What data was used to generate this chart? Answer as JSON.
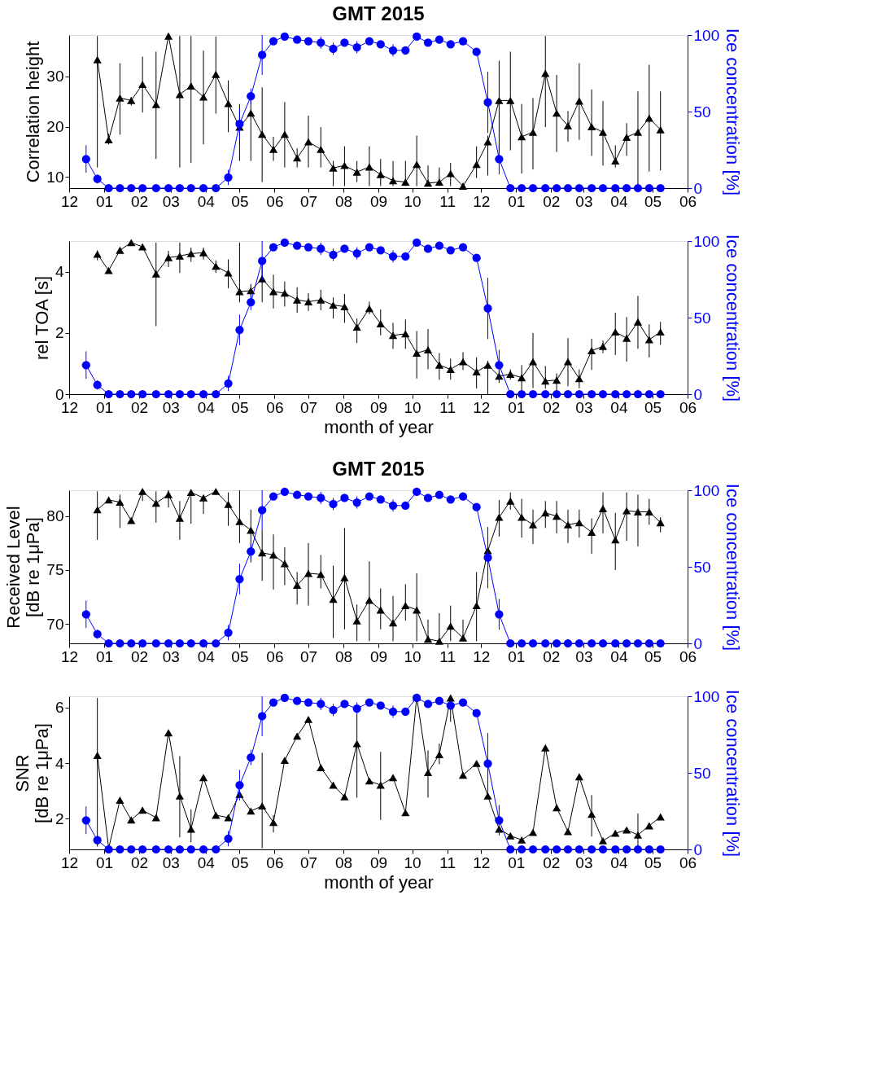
{
  "chart_data": [
    {
      "type": "line",
      "title": "GMT 2015",
      "ylabel": "Correlation height",
      "y2label": "Ice concentration [%]",
      "x": [
        "2014-12-16",
        "2014-12-26",
        "2015-01-05",
        "2015-01-15",
        "2015-01-25",
        "2015-02-04",
        "2015-02-16",
        "2015-02-27",
        "2015-03-09",
        "2015-03-19",
        "2015-03-30",
        "2015-04-10",
        "2015-04-21",
        "2015-05-01",
        "2015-05-11",
        "2015-05-21",
        "2015-05-31",
        "2015-06-10",
        "2015-06-21",
        "2015-07-01",
        "2015-07-12",
        "2015-07-23",
        "2015-08-02",
        "2015-08-13",
        "2015-08-24",
        "2015-09-03",
        "2015-09-14",
        "2015-09-25",
        "2015-10-05",
        "2015-10-15",
        "2015-10-25",
        "2015-11-04",
        "2015-11-15",
        "2015-11-27",
        "2015-12-07",
        "2015-12-17",
        "2015-12-27",
        "2016-01-06",
        "2016-01-16",
        "2016-01-27",
        "2016-02-06",
        "2016-02-16",
        "2016-02-26",
        "2016-03-08",
        "2016-03-18",
        "2016-03-29",
        "2016-04-08",
        "2016-04-18",
        "2016-04-28",
        "2016-05-08"
      ],
      "xlim": [
        "2014-12-01",
        "2016-06-01"
      ],
      "xticks": [
        {
          "value": "2014-12-01",
          "label": "12"
        },
        {
          "value": "2015-01-01",
          "label": "01"
        },
        {
          "value": "2015-02-01",
          "label": "02"
        },
        {
          "value": "2015-03-01",
          "label": "03"
        },
        {
          "value": "2015-04-01",
          "label": "04"
        },
        {
          "value": "2015-05-01",
          "label": "05"
        },
        {
          "value": "2015-06-01",
          "label": "06"
        },
        {
          "value": "2015-07-01",
          "label": "07"
        },
        {
          "value": "2015-08-01",
          "label": "08"
        },
        {
          "value": "2015-09-01",
          "label": "09"
        },
        {
          "value": "2015-10-01",
          "label": "10"
        },
        {
          "value": "2015-11-01",
          "label": "11"
        },
        {
          "value": "2015-12-01",
          "label": "12"
        },
        {
          "value": "2016-01-01",
          "label": "01"
        },
        {
          "value": "2016-02-01",
          "label": "02"
        },
        {
          "value": "2016-03-01",
          "label": "03"
        },
        {
          "value": "2016-04-01",
          "label": "04"
        },
        {
          "value": "2016-05-01",
          "label": "05"
        },
        {
          "value": "2016-06-01",
          "label": "06"
        }
      ],
      "ylim": [
        7.8,
        38.2
      ],
      "yticks": [
        10,
        20,
        30
      ],
      "y2lim": [
        0,
        100
      ],
      "y2ticks": [
        0,
        50,
        100
      ],
      "series": [
        {
          "color": "#000000",
          "marker": "triangle",
          "values": [
            null,
            33.3,
            17.4,
            25.7,
            25.2,
            28.4,
            24.4,
            38.0,
            26.4,
            28.1,
            25.9,
            30.4,
            24.6,
            19.9,
            22.7,
            18.5,
            15.5,
            18.5,
            13.8,
            17.0,
            15.5,
            11.8,
            12.3,
            11.0,
            12.0,
            10.5,
            9.3,
            9.0,
            12.5,
            8.8,
            9.0,
            10.7,
            8.2,
            12.5,
            17.0,
            25.2,
            25.2,
            18.0,
            18.9,
            30.6,
            22.7,
            20.2,
            25.1,
            20.0,
            18.9,
            13.2,
            17.9,
            18.9,
            21.7,
            19.4
          ],
          "errors": [
            null,
            [
              11.9,
              38.0
            ],
            [
              16.5,
              18.6
            ],
            [
              18.4,
              32.6
            ],
            [
              24.2,
              25.9
            ],
            [
              22.8,
              33.9
            ],
            [
              13.6,
              34.9
            ],
            null,
            [
              11.9,
              38.0
            ],
            [
              12.8,
              38.0
            ],
            [
              16.5,
              35.1
            ],
            [
              22.6,
              37.9
            ],
            [
              18.9,
              29.2
            ],
            [
              13.2,
              24.5
            ],
            [
              13.2,
              26.5
            ],
            [
              9.0,
              27.8
            ],
            [
              13.2,
              18.0
            ],
            [
              11.9,
              24.9
            ],
            [
              11.9,
              15.7
            ],
            [
              11.9,
              22.2
            ],
            [
              11.9,
              19.9
            ],
            [
              8.2,
              13.2
            ],
            [
              8.2,
              16.1
            ],
            [
              9.0,
              13.2
            ],
            [
              8.2,
              16.1
            ],
            [
              8.2,
              13.6
            ],
            [
              8.2,
              13.2
            ],
            [
              8.2,
              13.2
            ],
            [
              8.2,
              18.2
            ],
            [
              8.2,
              12.3
            ],
            [
              8.2,
              11.9
            ],
            [
              8.2,
              12.8
            ],
            null,
            [
              9.8,
              16.1
            ],
            [
              10.3,
              18.2
            ],
            [
              14.9,
              33.1
            ],
            [
              15.3,
              34.9
            ],
            [
              10.7,
              24.5
            ],
            [
              11.5,
              25.7
            ],
            [
              19.9,
              38.0
            ],
            [
              15.0,
              30.3
            ],
            [
              17.0,
              23.1
            ],
            [
              17.4,
              32.6
            ],
            [
              14.2,
              27.4
            ],
            [
              12.3,
              25.1
            ],
            [
              11.9,
              16.3
            ],
            [
              14.2,
              20.7
            ],
            [
              8.6,
              27.0
            ],
            [
              11.1,
              32.3
            ],
            [
              11.3,
              27.0
            ]
          ]
        },
        {
          "color": "#0000ff",
          "marker": "circle",
          "axis": "y2",
          "values": [
            19,
            6,
            0,
            0,
            0,
            0,
            0,
            0,
            0,
            0,
            0,
            0,
            7,
            42,
            60,
            87,
            96,
            99,
            97,
            96,
            95,
            91,
            95,
            92,
            96,
            94,
            90,
            90,
            99,
            95,
            97,
            94,
            96,
            89,
            56,
            19,
            0,
            0,
            0,
            0,
            0,
            0,
            0,
            0,
            0,
            0,
            0,
            0,
            0,
            0
          ],
          "errors": [
            9,
            3,
            null,
            null,
            null,
            null,
            null,
            null,
            null,
            null,
            null,
            null,
            5,
            10,
            5,
            13,
            null,
            null,
            null,
            null,
            4,
            4,
            null,
            4,
            null,
            null,
            4,
            null,
            null,
            null,
            null,
            null,
            null,
            null,
            20,
            10,
            null,
            null,
            null,
            null,
            null,
            null,
            null,
            null,
            null,
            null,
            null,
            null,
            null,
            null
          ]
        }
      ]
    },
    {
      "type": "line",
      "xlabel": "month of year",
      "ylabel": "rel TOA [s]",
      "y2label": "Ice concentration [%]",
      "x": [
        "2014-12-16",
        "2014-12-26",
        "2015-01-05",
        "2015-01-15",
        "2015-01-25",
        "2015-02-04",
        "2015-02-16",
        "2015-02-27",
        "2015-03-09",
        "2015-03-19",
        "2015-03-30",
        "2015-04-10",
        "2015-04-21",
        "2015-05-01",
        "2015-05-11",
        "2015-05-21",
        "2015-05-31",
        "2015-06-10",
        "2015-06-21",
        "2015-07-01",
        "2015-07-12",
        "2015-07-23",
        "2015-08-02",
        "2015-08-13",
        "2015-08-24",
        "2015-09-03",
        "2015-09-14",
        "2015-09-25",
        "2015-10-05",
        "2015-10-15",
        "2015-10-25",
        "2015-11-04",
        "2015-11-15",
        "2015-11-27",
        "2015-12-07",
        "2015-12-17",
        "2015-12-27",
        "2016-01-06",
        "2016-01-16",
        "2016-01-27",
        "2016-02-06",
        "2016-02-16",
        "2016-02-26",
        "2016-03-08",
        "2016-03-18",
        "2016-03-29",
        "2016-04-08",
        "2016-04-18",
        "2016-04-28",
        "2016-05-08"
      ],
      "xlim": [
        "2014-12-01",
        "2016-06-01"
      ],
      "xticks": [
        {
          "value": "2014-12-01",
          "label": "12"
        },
        {
          "value": "2015-01-01",
          "label": "01"
        },
        {
          "value": "2015-02-01",
          "label": "02"
        },
        {
          "value": "2015-03-01",
          "label": "03"
        },
        {
          "value": "2015-04-01",
          "label": "04"
        },
        {
          "value": "2015-05-01",
          "label": "05"
        },
        {
          "value": "2015-06-01",
          "label": "06"
        },
        {
          "value": "2015-07-01",
          "label": "07"
        },
        {
          "value": "2015-08-01",
          "label": "08"
        },
        {
          "value": "2015-09-01",
          "label": "09"
        },
        {
          "value": "2015-10-01",
          "label": "10"
        },
        {
          "value": "2015-11-01",
          "label": "11"
        },
        {
          "value": "2015-12-01",
          "label": "12"
        },
        {
          "value": "2016-01-01",
          "label": "01"
        },
        {
          "value": "2016-02-01",
          "label": "02"
        },
        {
          "value": "2016-03-01",
          "label": "03"
        },
        {
          "value": "2016-04-01",
          "label": "04"
        },
        {
          "value": "2016-05-01",
          "label": "05"
        },
        {
          "value": "2016-06-01",
          "label": "06"
        }
      ],
      "ylim": [
        0,
        5
      ],
      "yticks": [
        0,
        2,
        4
      ],
      "y2lim": [
        0,
        100
      ],
      "y2ticks": [
        0,
        50,
        100
      ],
      "series": [
        {
          "color": "#000000",
          "marker": "triangle",
          "values": [
            null,
            4.57,
            4.04,
            4.7,
            4.95,
            4.81,
            3.93,
            4.46,
            4.51,
            4.59,
            4.62,
            4.18,
            3.96,
            3.35,
            3.38,
            3.77,
            3.35,
            3.3,
            3.08,
            3.02,
            3.08,
            2.91,
            2.86,
            2.19,
            2.8,
            2.3,
            1.92,
            1.97,
            1.34,
            1.45,
            0.95,
            0.81,
            1.06,
            0.73,
            0.95,
            0.59,
            0.65,
            0.54,
            1.06,
            0.43,
            0.46,
            1.06,
            0.51,
            1.42,
            1.56,
            2.03,
            1.83,
            2.36,
            1.78,
            2.03
          ],
          "errors": [
            null,
            [
              4.37,
              4.7
            ],
            [
              3.95,
              4.12
            ],
            [
              4.62,
              4.78
            ],
            [
              4.88,
              5.0
            ],
            [
              4.72,
              4.9
            ],
            [
              2.22,
              4.95
            ],
            [
              4.15,
              4.68
            ],
            [
              3.96,
              4.95
            ],
            [
              4.32,
              4.79
            ],
            [
              4.4,
              4.79
            ],
            [
              3.96,
              4.37
            ],
            [
              3.46,
              4.4
            ],
            [
              3.0,
              4.95
            ],
            [
              3.16,
              3.6
            ],
            [
              3.0,
              4.37
            ],
            [
              2.8,
              3.9
            ],
            [
              2.86,
              3.68
            ],
            [
              2.66,
              3.49
            ],
            [
              2.72,
              3.3
            ],
            [
              2.74,
              3.41
            ],
            [
              2.47,
              3.16
            ],
            [
              2.33,
              3.27
            ],
            [
              1.67,
              2.47
            ],
            [
              2.61,
              3.02
            ],
            [
              1.92,
              2.77
            ],
            [
              1.48,
              2.33
            ],
            [
              1.48,
              2.44
            ],
            [
              0.51,
              2.06
            ],
            [
              0.81,
              2.13
            ],
            [
              0.47,
              1.34
            ],
            [
              0.47,
              1.16
            ],
            [
              0.79,
              1.37
            ],
            [
              0.19,
              1.2
            ],
            [
              0,
              1.09
            ],
            [
              0.37,
              0.79
            ],
            [
              0.47,
              0.81
            ],
            [
              0.12,
              0.95
            ],
            [
              0.2,
              2.0
            ],
            [
              0.18,
              0.92
            ],
            [
              0.12,
              0.68
            ],
            [
              0.26,
              1.83
            ],
            [
              0.19,
              0.81
            ],
            [
              0.79,
              1.81
            ],
            [
              1.34,
              1.75
            ],
            [
              1.28,
              2.66
            ],
            [
              1.06,
              2.52
            ],
            [
              1.48,
              3.21
            ],
            [
              1.2,
              2.28
            ],
            [
              1.61,
              2.36
            ]
          ]
        },
        {
          "color": "#0000ff",
          "marker": "circle",
          "axis": "y2",
          "values": [
            19,
            6,
            0,
            0,
            0,
            0,
            0,
            0,
            0,
            0,
            0,
            0,
            7,
            42,
            60,
            87,
            96,
            99,
            97,
            96,
            95,
            91,
            95,
            92,
            96,
            94,
            90,
            90,
            99,
            95,
            97,
            94,
            96,
            89,
            56,
            19,
            0,
            0,
            0,
            0,
            0,
            0,
            0,
            0,
            0,
            0,
            0,
            0,
            0,
            0
          ],
          "errors": [
            9,
            3,
            null,
            null,
            null,
            null,
            null,
            null,
            null,
            null,
            null,
            null,
            5,
            10,
            5,
            13,
            null,
            null,
            null,
            null,
            4,
            4,
            null,
            4,
            null,
            null,
            4,
            null,
            null,
            null,
            null,
            null,
            null,
            null,
            20,
            10,
            null,
            null,
            null,
            null,
            null,
            null,
            null,
            null,
            null,
            null,
            null,
            null,
            null,
            null
          ]
        }
      ]
    },
    {
      "type": "line",
      "title": "GMT 2015",
      "ylabel": "Received Level\n[dB re 1μPa]",
      "y2label": "Ice concentration [%]",
      "x": [
        "2014-12-16",
        "2014-12-26",
        "2015-01-05",
        "2015-01-15",
        "2015-01-25",
        "2015-02-04",
        "2015-02-16",
        "2015-02-27",
        "2015-03-09",
        "2015-03-19",
        "2015-03-30",
        "2015-04-10",
        "2015-04-21",
        "2015-05-01",
        "2015-05-11",
        "2015-05-21",
        "2015-05-31",
        "2015-06-10",
        "2015-06-21",
        "2015-07-01",
        "2015-07-12",
        "2015-07-23",
        "2015-08-02",
        "2015-08-13",
        "2015-08-24",
        "2015-09-03",
        "2015-09-14",
        "2015-09-25",
        "2015-10-05",
        "2015-10-15",
        "2015-10-25",
        "2015-11-04",
        "2015-11-15",
        "2015-11-27",
        "2015-12-07",
        "2015-12-17",
        "2015-12-27",
        "2016-01-06",
        "2016-01-16",
        "2016-01-27",
        "2016-02-06",
        "2016-02-16",
        "2016-02-26",
        "2016-03-08",
        "2016-03-18",
        "2016-03-29",
        "2016-04-08",
        "2016-04-18",
        "2016-04-28",
        "2016-05-08"
      ],
      "xlim": [
        "2014-12-01",
        "2016-06-01"
      ],
      "xticks": [
        {
          "value": "2014-12-01",
          "label": "12"
        },
        {
          "value": "2015-01-01",
          "label": "01"
        },
        {
          "value": "2015-02-01",
          "label": "02"
        },
        {
          "value": "2015-03-01",
          "label": "03"
        },
        {
          "value": "2015-04-01",
          "label": "04"
        },
        {
          "value": "2015-05-01",
          "label": "05"
        },
        {
          "value": "2015-06-01",
          "label": "06"
        },
        {
          "value": "2015-07-01",
          "label": "07"
        },
        {
          "value": "2015-08-01",
          "label": "08"
        },
        {
          "value": "2015-09-01",
          "label": "09"
        },
        {
          "value": "2015-10-01",
          "label": "10"
        },
        {
          "value": "2015-11-01",
          "label": "11"
        },
        {
          "value": "2015-12-01",
          "label": "12"
        },
        {
          "value": "2016-01-01",
          "label": "01"
        },
        {
          "value": "2016-02-01",
          "label": "02"
        },
        {
          "value": "2016-03-01",
          "label": "03"
        },
        {
          "value": "2016-04-01",
          "label": "04"
        },
        {
          "value": "2016-05-01",
          "label": "05"
        },
        {
          "value": "2016-06-01",
          "label": "06"
        }
      ],
      "ylim": [
        68.2,
        82.4
      ],
      "yticks": [
        70,
        75,
        80
      ],
      "y2lim": [
        0,
        100
      ],
      "y2ticks": [
        0,
        50,
        100
      ],
      "series": [
        {
          "color": "#000000",
          "marker": "triangle",
          "values": [
            null,
            80.6,
            81.5,
            81.3,
            79.6,
            82.3,
            81.2,
            82.0,
            79.8,
            82.2,
            81.7,
            82.3,
            81.1,
            79.5,
            78.7,
            76.6,
            76.4,
            75.6,
            73.6,
            74.7,
            74.6,
            72.3,
            74.3,
            70.3,
            72.2,
            71.3,
            70.1,
            71.7,
            71.3,
            68.6,
            68.4,
            69.8,
            68.7,
            71.7,
            76.8,
            79.9,
            81.4,
            79.9,
            79.2,
            80.3,
            80.0,
            79.2,
            79.4,
            78.5,
            80.7,
            77.8,
            80.5,
            80.4,
            80.4,
            79.4
          ],
          "errors": [
            null,
            [
              77.8,
              82.3
            ],
            [
              81.2,
              81.8
            ],
            [
              78.9,
              82.0
            ],
            null,
            [
              81.4,
              82.4
            ],
            [
              79.4,
              82.3
            ],
            [
              80.8,
              82.4
            ],
            [
              77.8,
              81.4
            ],
            [
              79.3,
              82.4
            ],
            [
              80.2,
              81.8
            ],
            [
              82.0,
              82.4
            ],
            [
              79.1,
              82.2
            ],
            [
              77.5,
              82.4
            ],
            [
              75.7,
              80.6
            ],
            [
              74.0,
              78.7
            ],
            [
              73.2,
              78.3
            ],
            [
              73.6,
              77.1
            ],
            [
              71.8,
              74.8
            ],
            [
              71.7,
              77.5
            ],
            [
              73.3,
              76.4
            ],
            [
              68.7,
              75.4
            ],
            [
              69.5,
              78.9
            ],
            [
              68.4,
              71.8
            ],
            [
              68.4,
              75.8
            ],
            [
              69.5,
              73.3
            ],
            [
              68.4,
              72.6
            ],
            [
              70.3,
              73.7
            ],
            [
              68.4,
              74.7
            ],
            [
              68.4,
              70.4
            ],
            [
              68.4,
              71.0
            ],
            [
              68.4,
              71.7
            ],
            [
              68.4,
              70.4
            ],
            [
              68.4,
              74.8
            ],
            null,
            [
              78.1,
              81.5
            ],
            [
              80.6,
              82.2
            ],
            [
              78.0,
              81.6
            ],
            [
              77.4,
              80.6
            ],
            [
              78.9,
              81.4
            ],
            [
              78.4,
              81.4
            ],
            [
              77.5,
              80.6
            ],
            [
              78.0,
              80.6
            ],
            [
              76.5,
              79.8
            ],
            [
              78.4,
              82.2
            ],
            [
              75.0,
              80.3
            ],
            [
              77.7,
              82.2
            ],
            [
              77.2,
              82.0
            ],
            [
              79.2,
              81.6
            ],
            [
              78.5,
              79.9
            ]
          ]
        },
        {
          "color": "#0000ff",
          "marker": "circle",
          "axis": "y2",
          "values": [
            19,
            6,
            0,
            0,
            0,
            0,
            0,
            0,
            0,
            0,
            0,
            0,
            7,
            42,
            60,
            87,
            96,
            99,
            97,
            96,
            95,
            91,
            95,
            92,
            96,
            94,
            90,
            90,
            99,
            95,
            97,
            94,
            96,
            89,
            56,
            19,
            0,
            0,
            0,
            0,
            0,
            0,
            0,
            0,
            0,
            0,
            0,
            0,
            0,
            0
          ],
          "errors": [
            9,
            3,
            null,
            null,
            null,
            null,
            null,
            null,
            null,
            null,
            null,
            null,
            5,
            10,
            5,
            13,
            null,
            null,
            null,
            null,
            4,
            4,
            null,
            4,
            null,
            null,
            4,
            null,
            null,
            null,
            null,
            null,
            null,
            null,
            20,
            10,
            null,
            null,
            null,
            null,
            null,
            null,
            null,
            null,
            null,
            null,
            null,
            null,
            null,
            null
          ]
        }
      ]
    },
    {
      "type": "line",
      "xlabel": "month of year",
      "ylabel": "SNR\n[dB re 1μPa]",
      "y2label": "Ice concentration [%]",
      "x": [
        "2014-12-16",
        "2014-12-26",
        "2015-01-05",
        "2015-01-15",
        "2015-01-25",
        "2015-02-04",
        "2015-02-16",
        "2015-02-27",
        "2015-03-09",
        "2015-03-19",
        "2015-03-30",
        "2015-04-10",
        "2015-04-21",
        "2015-05-01",
        "2015-05-11",
        "2015-05-21",
        "2015-05-31",
        "2015-06-10",
        "2015-06-21",
        "2015-07-01",
        "2015-07-12",
        "2015-07-23",
        "2015-08-02",
        "2015-08-13",
        "2015-08-24",
        "2015-09-03",
        "2015-09-14",
        "2015-09-25",
        "2015-10-05",
        "2015-10-15",
        "2015-10-25",
        "2015-11-04",
        "2015-11-15",
        "2015-11-27",
        "2015-12-07",
        "2015-12-17",
        "2015-12-27",
        "2016-01-06",
        "2016-01-16",
        "2016-01-27",
        "2016-02-06",
        "2016-02-16",
        "2016-02-26",
        "2016-03-08",
        "2016-03-18",
        "2016-03-29",
        "2016-04-08",
        "2016-04-18",
        "2016-04-28",
        "2016-05-08"
      ],
      "xlim": [
        "2014-12-01",
        "2016-06-01"
      ],
      "xticks": [
        {
          "value": "2014-12-01",
          "label": "12"
        },
        {
          "value": "2015-01-01",
          "label": "01"
        },
        {
          "value": "2015-02-01",
          "label": "02"
        },
        {
          "value": "2015-03-01",
          "label": "03"
        },
        {
          "value": "2015-04-01",
          "label": "04"
        },
        {
          "value": "2015-05-01",
          "label": "05"
        },
        {
          "value": "2015-06-01",
          "label": "06"
        },
        {
          "value": "2015-07-01",
          "label": "07"
        },
        {
          "value": "2015-08-01",
          "label": "08"
        },
        {
          "value": "2015-09-01",
          "label": "09"
        },
        {
          "value": "2015-10-01",
          "label": "10"
        },
        {
          "value": "2015-11-01",
          "label": "11"
        },
        {
          "value": "2015-12-01",
          "label": "12"
        },
        {
          "value": "2016-01-01",
          "label": "01"
        },
        {
          "value": "2016-02-01",
          "label": "02"
        },
        {
          "value": "2016-03-01",
          "label": "03"
        },
        {
          "value": "2016-04-01",
          "label": "04"
        },
        {
          "value": "2016-05-01",
          "label": "05"
        },
        {
          "value": "2016-06-01",
          "label": "06"
        }
      ],
      "ylim": [
        0.9,
        6.4
      ],
      "yticks": [
        2,
        4,
        6
      ],
      "y2lim": [
        0,
        100
      ],
      "y2ticks": [
        0,
        50,
        100
      ],
      "series": [
        {
          "color": "#000000",
          "marker": "triangle",
          "values": [
            null,
            4.28,
            0.94,
            2.67,
            1.96,
            2.31,
            2.04,
            5.09,
            2.82,
            1.63,
            3.48,
            2.13,
            2.04,
            2.88,
            2.28,
            2.46,
            1.87,
            4.1,
            4.97,
            5.57,
            3.84,
            3.21,
            2.79,
            4.7,
            3.36,
            3.21,
            3.48,
            2.22,
            6.37,
            3.66,
            4.31,
            6.34,
            3.57,
            3.99,
            2.82,
            1.63,
            1.39,
            1.24,
            1.51,
            4.55,
            2.4,
            1.54,
            3.51,
            2.16,
            1.21,
            1.48,
            1.6,
            1.42,
            1.75,
            2.07
          ],
          "errors": [
            null,
            [
              1.0,
              6.34
            ],
            null,
            null,
            null,
            null,
            null,
            null,
            [
              1.33,
              4.25
            ],
            [
              1.15,
              2.34
            ],
            null,
            null,
            null,
            null,
            null,
            [
              0.94,
              4.37
            ],
            [
              1.51,
              2.13
            ],
            null,
            null,
            null,
            null,
            null,
            null,
            [
              2.76,
              5.75
            ],
            null,
            [
              1.96,
              4.4
            ],
            null,
            null,
            null,
            [
              2.76,
              4.46
            ],
            [
              3.96,
              4.7
            ],
            [
              5.48,
              6.22
            ],
            null,
            null,
            null,
            null,
            null,
            null,
            null,
            null,
            null,
            null,
            null,
            [
              1.36,
              2.85
            ],
            null,
            null,
            null,
            [
              0.94,
              2.19
            ],
            null,
            null
          ]
        },
        {
          "color": "#0000ff",
          "marker": "circle",
          "axis": "y2",
          "values": [
            19,
            6,
            0,
            0,
            0,
            0,
            0,
            0,
            0,
            0,
            0,
            0,
            7,
            42,
            60,
            87,
            96,
            99,
            97,
            96,
            95,
            91,
            95,
            92,
            96,
            94,
            90,
            90,
            99,
            95,
            97,
            94,
            96,
            89,
            56,
            19,
            0,
            0,
            0,
            0,
            0,
            0,
            0,
            0,
            0,
            0,
            0,
            0,
            0,
            0
          ],
          "errors": [
            9,
            3,
            null,
            null,
            null,
            null,
            null,
            null,
            null,
            null,
            null,
            null,
            5,
            10,
            5,
            13,
            null,
            null,
            null,
            null,
            4,
            4,
            null,
            4,
            null,
            null,
            4,
            null,
            null,
            null,
            null,
            null,
            null,
            null,
            20,
            10,
            null,
            null,
            null,
            null,
            null,
            null,
            null,
            null,
            null,
            null,
            null,
            null,
            null,
            null
          ]
        }
      ]
    }
  ]
}
